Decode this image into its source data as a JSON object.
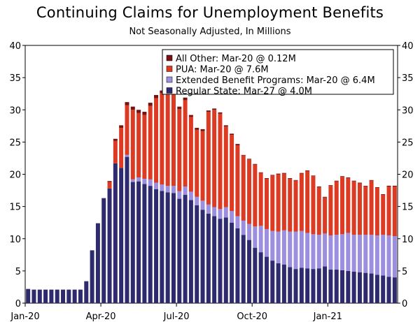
{
  "chart_data": {
    "type": "bar",
    "stacked": true,
    "title": "Continuing Claims for Unemployment Benefits",
    "subtitle": "Not Seasonally Adjusted, In Millions",
    "ylim": [
      0,
      40
    ],
    "y_ticks": [
      0,
      5,
      10,
      15,
      20,
      25,
      30,
      35,
      40
    ],
    "x_tick_labels": [
      {
        "label": "Jan-20",
        "index": 0
      },
      {
        "label": "Apr-20",
        "index": 13
      },
      {
        "label": "Jul-20",
        "index": 26
      },
      {
        "label": "Oct-20",
        "index": 39
      },
      {
        "label": "Jan-21",
        "index": 52
      }
    ],
    "legend_position": "top-right",
    "series": [
      {
        "name": "Regular State",
        "legend_label": "Regular State: Mar-27 @ 4.0M",
        "color": "#2E2A6E",
        "values": [
          2.2,
          2.1,
          2.1,
          2.1,
          2.1,
          2.1,
          2.1,
          2.1,
          2.1,
          2.1,
          3.4,
          8.2,
          12.4,
          16.3,
          17.8,
          21.7,
          21.0,
          22.7,
          18.8,
          18.9,
          18.5,
          18.2,
          17.7,
          17.4,
          17.2,
          17.1,
          16.2,
          16.8,
          16.0,
          15.2,
          14.5,
          13.9,
          13.5,
          13.1,
          13.3,
          12.5,
          11.6,
          10.6,
          9.8,
          8.6,
          7.9,
          7.2,
          6.6,
          6.2,
          6.0,
          5.6,
          5.3,
          5.5,
          5.4,
          5.3,
          5.4,
          5.7,
          5.2,
          5.2,
          5.1,
          5.0,
          4.9,
          4.8,
          4.7,
          4.6,
          4.4,
          4.3,
          4.1,
          4.0
        ]
      },
      {
        "name": "Extended Benefit Programs",
        "legend_label": "Extended Benefit Programs: Mar-20 @ 6.4M",
        "color": "#9C8FE0",
        "values": [
          0,
          0,
          0,
          0,
          0,
          0,
          0,
          0,
          0,
          0,
          0,
          0,
          0,
          0,
          0,
          0,
          0,
          0.3,
          0.4,
          0.6,
          0.8,
          1.0,
          1.0,
          1.0,
          1.0,
          1.1,
          1.2,
          1.3,
          1.3,
          1.3,
          1.4,
          1.4,
          1.4,
          1.5,
          1.6,
          1.8,
          1.9,
          2.2,
          2.5,
          3.3,
          4.1,
          4.3,
          4.6,
          4.9,
          5.3,
          5.5,
          5.8,
          5.7,
          5.5,
          5.4,
          5.2,
          5.1,
          5.3,
          5.4,
          5.6,
          5.9,
          5.7,
          5.8,
          5.9,
          6.0,
          6.1,
          6.3,
          6.4,
          6.4
        ]
      },
      {
        "name": "PUA",
        "legend_label": "PUA: Mar-20 @ 7.6M",
        "color": "#DC3A22",
        "values": [
          0,
          0,
          0,
          0,
          0,
          0,
          0,
          0,
          0,
          0,
          0,
          0,
          0,
          0,
          1.0,
          3.5,
          6.2,
          7.7,
          10.8,
          10.0,
          9.9,
          11.4,
          13.1,
          14.2,
          14.8,
          14.7,
          12.7,
          13.4,
          11.6,
          10.4,
          10.8,
          14.4,
          15.1,
          14.8,
          12.5,
          11.8,
          11.0,
          10.1,
          10.0,
          9.6,
          8.2,
          7.8,
          8.6,
          8.9,
          8.8,
          8.2,
          7.9,
          8.9,
          9.6,
          9.0,
          7.4,
          5.6,
          7.7,
          8.3,
          8.9,
          8.5,
          8.3,
          8.0,
          7.5,
          8.4,
          7.4,
          6.2,
          7.6,
          7.7
        ]
      },
      {
        "name": "All Other",
        "legend_label": "All Other: Mar-20 @ 0.12M",
        "color": "#7A1010",
        "values": [
          0,
          0,
          0,
          0,
          0,
          0,
          0,
          0,
          0,
          0,
          0,
          0,
          0,
          0,
          0.15,
          0.3,
          0.4,
          0.5,
          0.5,
          0.5,
          0.5,
          0.5,
          0.5,
          0.4,
          0.4,
          0.4,
          0.4,
          0.4,
          0.3,
          0.3,
          0.3,
          0.2,
          0.2,
          0.2,
          0.2,
          0.2,
          0.2,
          0.1,
          0.1,
          0.1,
          0.1,
          0.1,
          0.1,
          0.1,
          0.1,
          0.1,
          0.1,
          0.1,
          0.1,
          0.1,
          0.1,
          0.1,
          0.1,
          0.1,
          0.1,
          0.1,
          0.1,
          0.1,
          0.1,
          0.1,
          0.1,
          0.1,
          0.12,
          0.12
        ]
      }
    ],
    "legend_order": [
      "All Other",
      "PUA",
      "Extended Benefit Programs",
      "Regular State"
    ]
  }
}
